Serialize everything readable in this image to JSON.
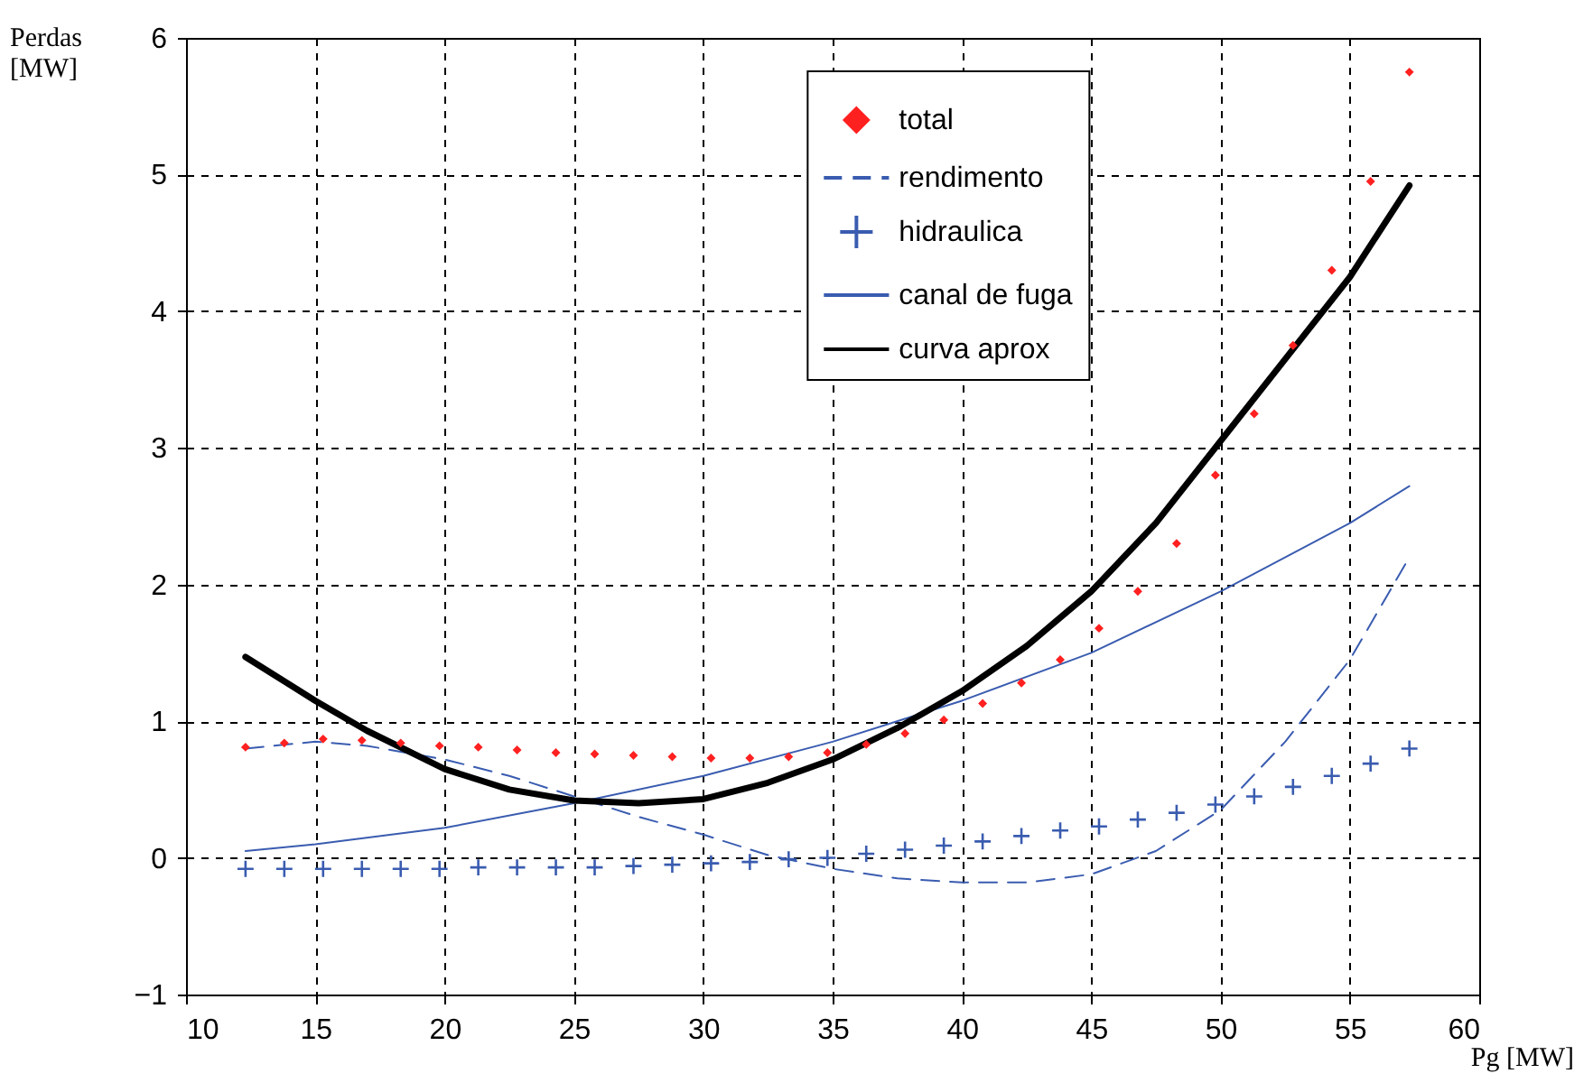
{
  "chart_data": {
    "type": "line",
    "xlabel": "Pg [MW]",
    "ylabel": "Perdas [MW]",
    "xlim": [
      10,
      60
    ],
    "xticks": [
      10,
      15,
      20,
      25,
      30,
      35,
      40,
      45,
      50,
      55,
      60
    ],
    "ylim": [
      -1,
      6
    ],
    "yticks": [
      -1,
      0,
      1,
      2,
      3,
      4,
      5,
      6
    ],
    "grid": true,
    "legend": "top right",
    "series": [
      {
        "name": "total",
        "type": "scatter",
        "marker": "diamond",
        "color": "#ff2020",
        "x": [
          12.3,
          13.8,
          15.3,
          16.8,
          18.3,
          19.8,
          21.3,
          22.8,
          24.3,
          25.8,
          27.3,
          28.8,
          30.3,
          31.8,
          33.3,
          34.8,
          36.3,
          37.8,
          39.3,
          40.8,
          42.3,
          43.8,
          45.3,
          46.8,
          48.3,
          49.8,
          51.3,
          52.8,
          54.3,
          55.8,
          57.3
        ],
        "values": [
          0.81,
          0.84,
          0.87,
          0.86,
          0.84,
          0.82,
          0.81,
          0.79,
          0.77,
          0.76,
          0.75,
          0.74,
          0.73,
          0.73,
          0.74,
          0.77,
          0.83,
          0.91,
          1.01,
          1.13,
          1.28,
          1.45,
          1.68,
          1.95,
          2.3,
          2.8,
          3.25,
          3.75,
          4.3,
          4.95,
          5.75
        ]
      },
      {
        "name": "rendimento",
        "type": "line",
        "line_style": "dashed",
        "color": "#3a5cb0",
        "x": [
          12.3,
          15,
          17,
          20,
          22.5,
          25,
          27.5,
          30,
          32.5,
          35,
          37.5,
          40,
          42.5,
          45,
          47.5,
          50,
          52.5,
          55,
          57.3
        ],
        "values": [
          0.8,
          0.85,
          0.82,
          0.72,
          0.6,
          0.45,
          0.3,
          0.17,
          0.02,
          -0.08,
          -0.15,
          -0.18,
          -0.18,
          -0.12,
          0.05,
          0.35,
          0.85,
          1.45,
          2.2
        ]
      },
      {
        "name": "hidraulica",
        "type": "scatter",
        "marker": "cross",
        "color": "#3a5cb0",
        "x": [
          12.3,
          13.8,
          15.3,
          16.8,
          18.3,
          19.8,
          21.3,
          22.8,
          24.3,
          25.8,
          27.3,
          28.8,
          30.3,
          31.8,
          33.3,
          34.8,
          36.3,
          37.8,
          39.3,
          40.8,
          42.3,
          43.8,
          45.3,
          46.8,
          48.3,
          49.8,
          51.3,
          52.8,
          54.3,
          55.8,
          57.3
        ],
        "values": [
          -0.08,
          -0.08,
          -0.08,
          -0.08,
          -0.08,
          -0.08,
          -0.07,
          -0.07,
          -0.07,
          -0.07,
          -0.06,
          -0.05,
          -0.04,
          -0.03,
          -0.01,
          0.0,
          0.03,
          0.06,
          0.09,
          0.12,
          0.16,
          0.2,
          0.23,
          0.28,
          0.33,
          0.39,
          0.45,
          0.52,
          0.6,
          0.69,
          0.8
        ]
      },
      {
        "name": "canal de fuga",
        "type": "line",
        "line_style": "solid",
        "color": "#3a5cb0",
        "x": [
          12.3,
          15,
          20,
          25,
          30,
          35,
          40,
          45,
          50,
          55,
          57.3
        ],
        "values": [
          0.05,
          0.1,
          0.22,
          0.4,
          0.6,
          0.85,
          1.15,
          1.5,
          1.95,
          2.45,
          2.72
        ]
      },
      {
        "name": "curva aprox",
        "type": "line",
        "line_style": "solid",
        "color": "#000000",
        "x": [
          12.3,
          15,
          17,
          20,
          22.5,
          25,
          27.5,
          30,
          32.5,
          35,
          37.5,
          40,
          42.5,
          45,
          47.5,
          50,
          52.5,
          55,
          57.3
        ],
        "values": [
          1.47,
          1.15,
          0.93,
          0.65,
          0.5,
          0.42,
          0.4,
          0.43,
          0.55,
          0.72,
          0.95,
          1.22,
          1.55,
          1.95,
          2.45,
          3.05,
          3.65,
          4.25,
          4.92
        ]
      }
    ]
  }
}
